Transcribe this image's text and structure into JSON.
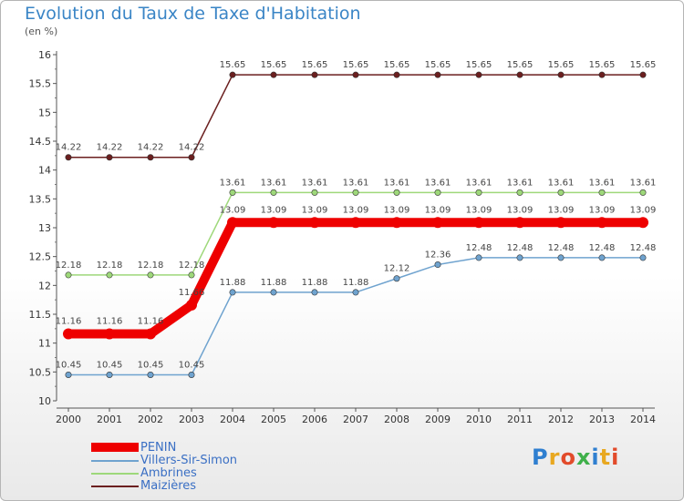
{
  "title": "Evolution du Taux de Taxe d'Habitation",
  "unit": "(en %)",
  "logo": "Proxiti",
  "chart_data": {
    "type": "line",
    "title": "Evolution du Taux de Taxe d'Habitation",
    "ylabel": "(en %)",
    "xlabel": "",
    "x": [
      "2000",
      "2001",
      "2002",
      "2003",
      "2004",
      "2005",
      "2006",
      "2007",
      "2008",
      "2009",
      "2010",
      "2011",
      "2012",
      "2013",
      "2014"
    ],
    "ylim": [
      10,
      16
    ],
    "yticks": [
      "10",
      "10.5",
      "11",
      "11.5",
      "12",
      "12.5",
      "13",
      "13.5",
      "14",
      "14.5",
      "15",
      "15.5",
      "16"
    ],
    "grid": false,
    "legend": "bottom-left",
    "series": [
      {
        "name": "Maizières",
        "color": "#6b1f1f",
        "values": [
          14.22,
          14.22,
          14.22,
          14.22,
          15.65,
          15.65,
          15.65,
          15.65,
          15.65,
          15.65,
          15.65,
          15.65,
          15.65,
          15.65,
          15.65
        ]
      },
      {
        "name": "Ambrines",
        "color": "#9ed87a",
        "values": [
          12.18,
          12.18,
          12.18,
          12.18,
          13.61,
          13.61,
          13.61,
          13.61,
          13.61,
          13.61,
          13.61,
          13.61,
          13.61,
          13.61,
          13.61
        ]
      },
      {
        "name": "Villers-Sir-Simon",
        "color": "#6fa3cf",
        "values": [
          10.45,
          10.45,
          10.45,
          10.45,
          11.88,
          11.88,
          11.88,
          11.88,
          12.12,
          12.36,
          12.48,
          12.48,
          12.48,
          12.48,
          12.48
        ]
      },
      {
        "name": "PENIN",
        "color": "#ee0000",
        "values": [
          11.16,
          11.16,
          11.16,
          11.66,
          13.09,
          13.09,
          13.09,
          13.09,
          13.09,
          13.09,
          13.09,
          13.09,
          13.09,
          13.09,
          13.09
        ]
      }
    ],
    "point_labels": {
      "Maizières": [
        "14.22",
        "14.22",
        "14.22",
        "14.22",
        "15.65",
        "15.65",
        "15.65",
        "15.65",
        "15.65",
        "15.65",
        "15.65",
        "15.65",
        "15.65",
        "15.65",
        "15.65"
      ],
      "Ambrines": [
        "12.18",
        "12.18",
        "12.18",
        "12.18",
        "13.61",
        "13.61",
        "13.61",
        "13.61",
        "13.61",
        "13.61",
        "13.61",
        "13.61",
        "13.61",
        "13.61",
        "13.61"
      ],
      "Villers-Sir-Simon": [
        "10.45",
        "10.45",
        "10.45",
        "10.45",
        "11.88",
        "11.88",
        "11.88",
        "11.88",
        "12.12",
        "12.36",
        "12.48",
        "12.48",
        "12.48",
        "12.48",
        "12.48"
      ],
      "PENIN": [
        "11.16",
        "11.16",
        "11.16",
        "11.66",
        "13.09",
        "13.09",
        "13.09",
        "13.09",
        "13.09",
        "13.09",
        "13.09",
        "13.09",
        "13.09",
        "13.09",
        "13.09"
      ]
    },
    "legend_entries": [
      "PENIN",
      "Villers-Sir-Simon",
      "Ambrines",
      "Maizières"
    ]
  }
}
